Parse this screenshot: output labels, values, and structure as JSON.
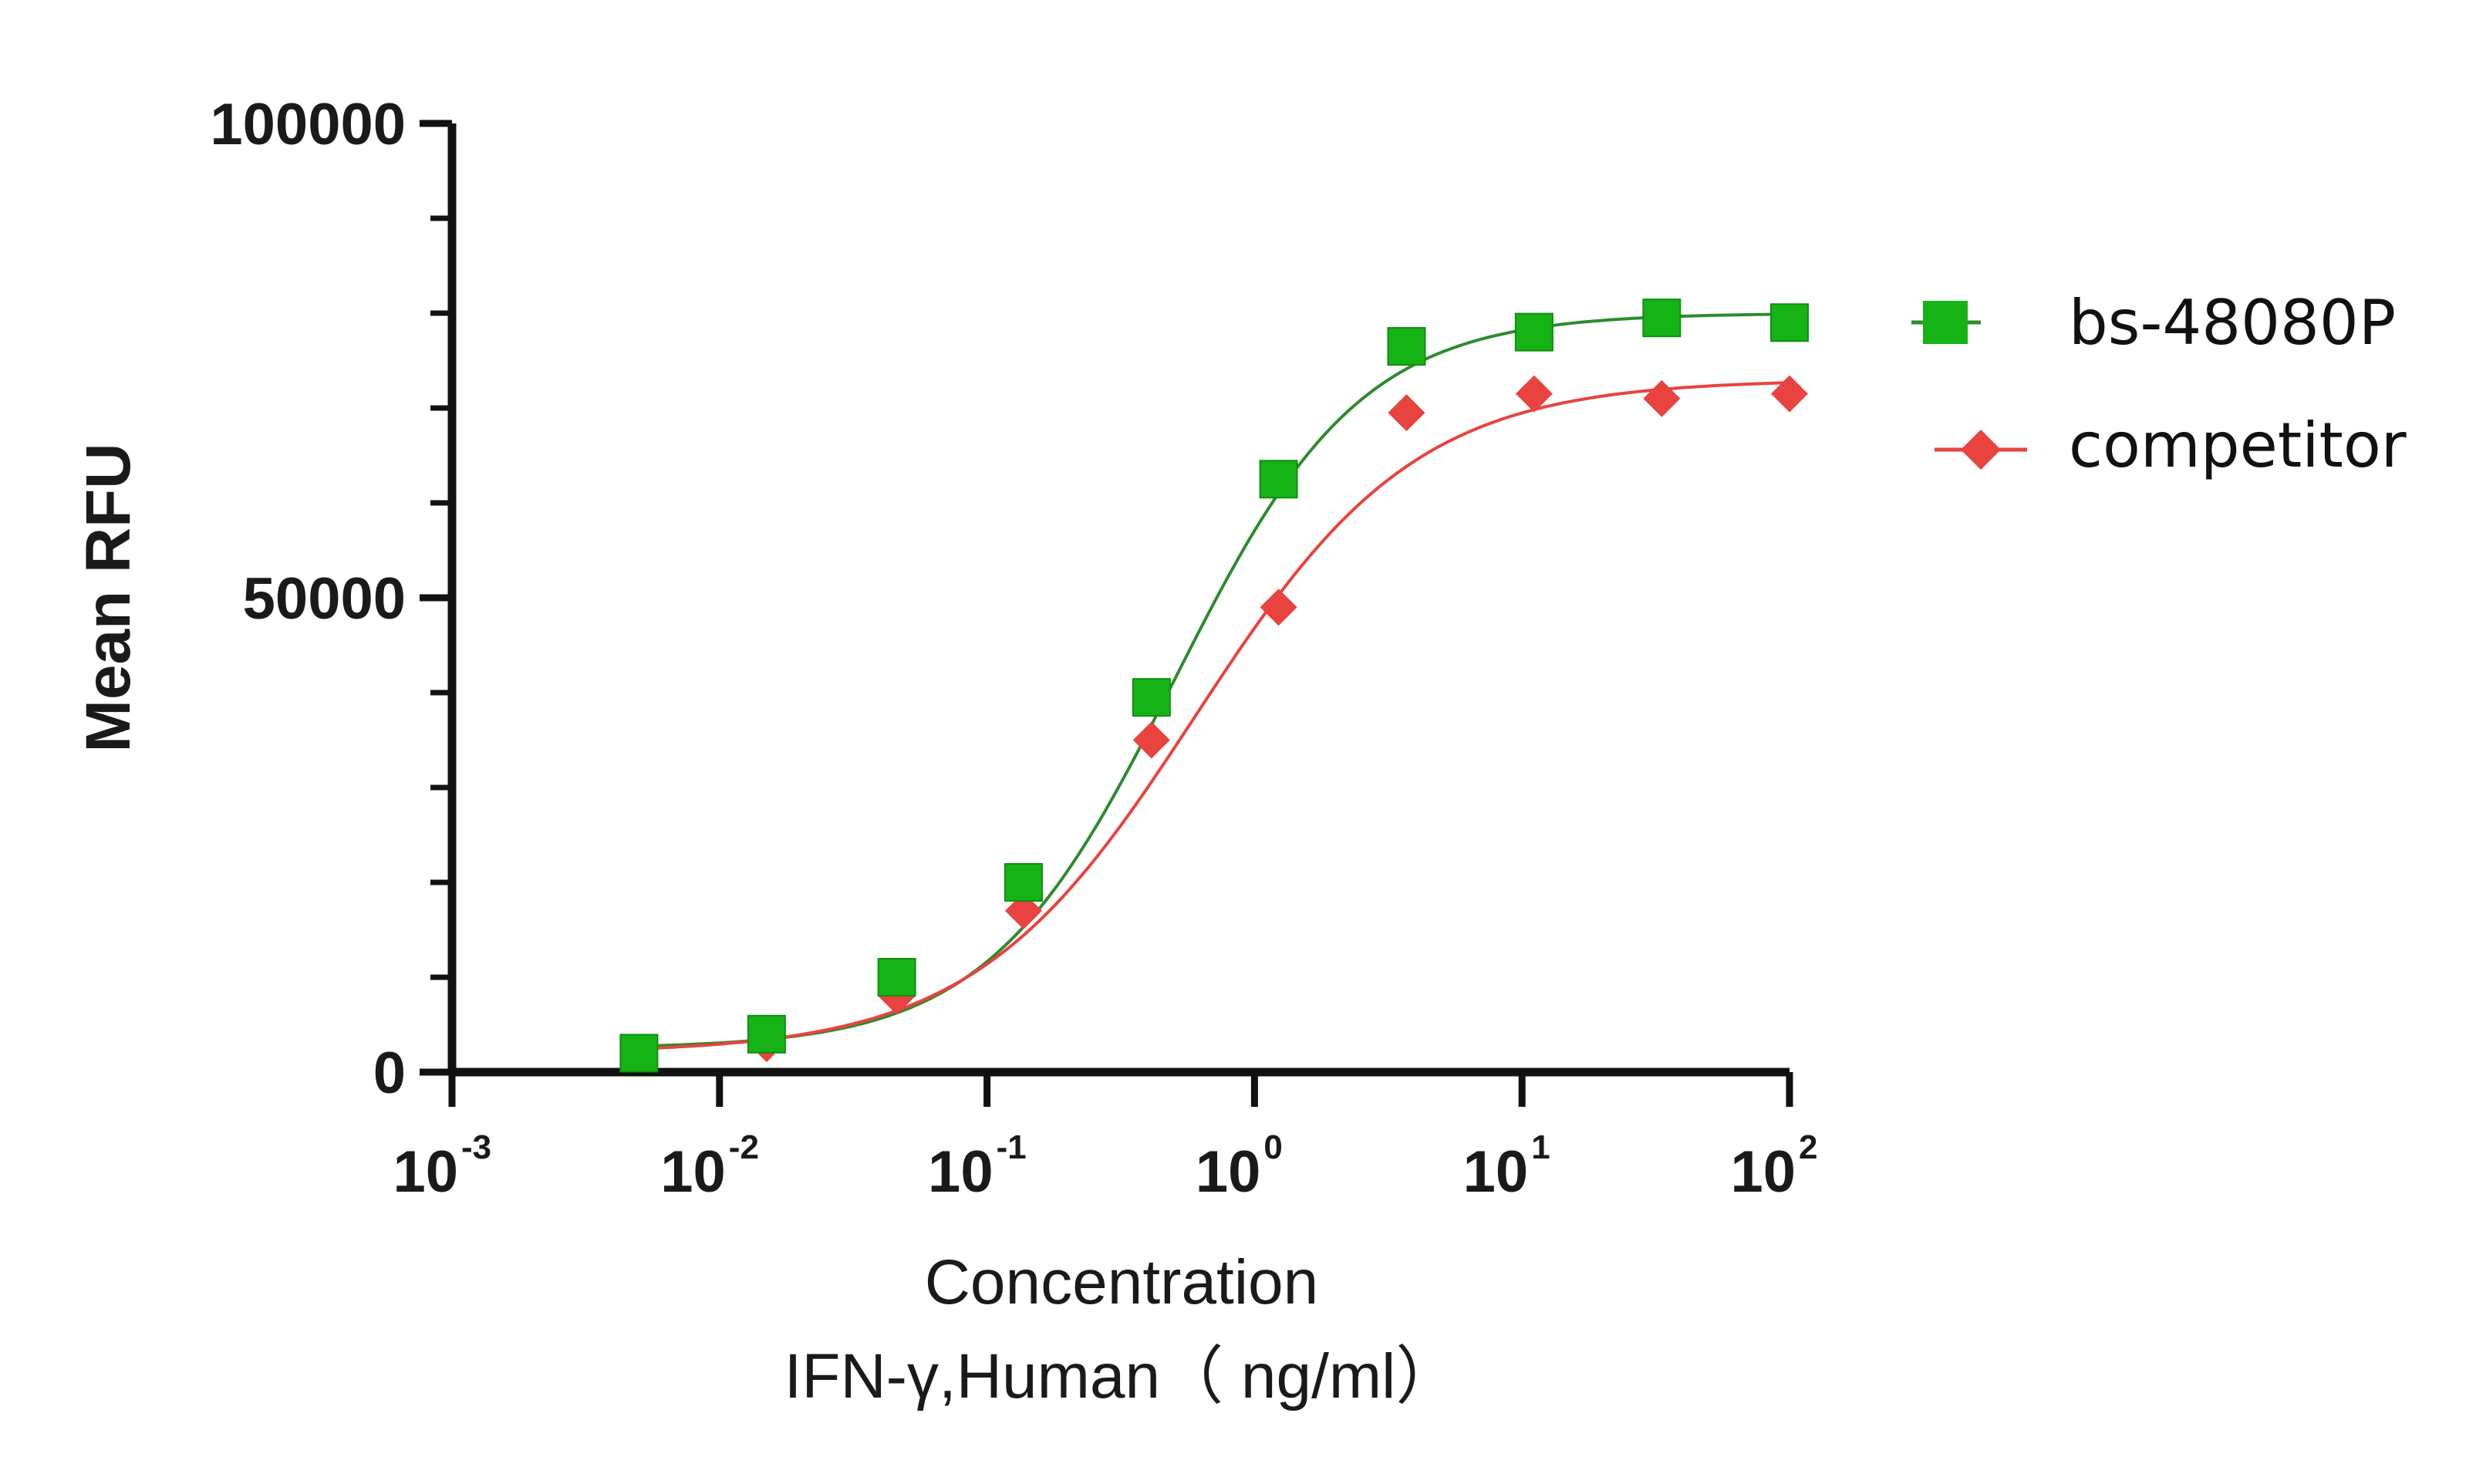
{
  "chart_data": {
    "type": "scatter",
    "title": "",
    "xlabel": "Concentration",
    "xlabel_sub": "IFN-γ,Human（ ng/ml）",
    "ylabel": "Mean RFU",
    "x_scale": "log10",
    "xlim": [
      0.001,
      100
    ],
    "ylim": [
      0,
      100000
    ],
    "y_ticks": [
      {
        "value": 0,
        "label": "0"
      },
      {
        "value": 50000,
        "label": "50000"
      },
      {
        "value": 100000,
        "label": "100000"
      }
    ],
    "x_ticks": [
      {
        "value": 0.001,
        "base": "10",
        "exp": "-3"
      },
      {
        "value": 0.01,
        "base": "10",
        "exp": "-2"
      },
      {
        "value": 0.1,
        "base": "10",
        "exp": "-1"
      },
      {
        "value": 1,
        "base": "10",
        "exp": "0"
      },
      {
        "value": 10,
        "base": "10",
        "exp": "1"
      },
      {
        "value": 100,
        "base": "10",
        "exp": "2"
      }
    ],
    "legend_position": "right",
    "series": [
      {
        "name": "bs-48080P",
        "color": "#16b316",
        "curve_color": "#2e8b2e",
        "marker": "square",
        "x": [
          0.005,
          0.015,
          0.046,
          0.137,
          0.412,
          1.23,
          3.7,
          11.1,
          33.3,
          100
        ],
        "y": [
          2000,
          4000,
          10000,
          20000,
          39500,
          62500,
          76500,
          78000,
          79500,
          79000
        ],
        "fit": {
          "bottom": 2500,
          "top": 80000,
          "ec50": 0.5,
          "hill": 1.25
        }
      },
      {
        "name": "competitor",
        "color": "#e8433f",
        "curve_color": "#e8433f",
        "marker": "diamond",
        "x": [
          0.005,
          0.015,
          0.046,
          0.137,
          0.412,
          1.23,
          3.7,
          11.1,
          33.3,
          100
        ],
        "y": [
          2000,
          3000,
          8000,
          17000,
          35000,
          49000,
          69500,
          71500,
          71000,
          71500
        ],
        "fit": {
          "bottom": 2000,
          "top": 73000,
          "ec50": 0.6,
          "hill": 1.05
        }
      }
    ]
  }
}
